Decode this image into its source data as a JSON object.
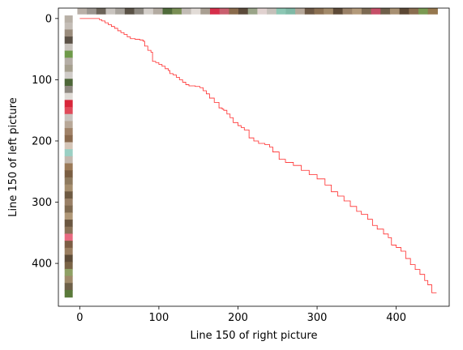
{
  "chart_data": {
    "type": "line",
    "title": "",
    "xlabel": "Line 150 of right picture",
    "ylabel": "Line 150 of left picture",
    "xlim": [
      -27,
      467
    ],
    "ylim": [
      470,
      -17
    ],
    "x_ticks": [
      0,
      100,
      200,
      300,
      400
    ],
    "y_ticks": [
      0,
      100,
      200,
      300,
      400
    ],
    "grid": false,
    "series": [
      {
        "color": "#ff2a2a",
        "points": [
          [
            0,
            0
          ],
          [
            22,
            0
          ],
          [
            25,
            2
          ],
          [
            28,
            4
          ],
          [
            32,
            7
          ],
          [
            36,
            10
          ],
          [
            40,
            13
          ],
          [
            44,
            16
          ],
          [
            48,
            20
          ],
          [
            52,
            23
          ],
          [
            56,
            26
          ],
          [
            60,
            30
          ],
          [
            64,
            33
          ],
          [
            70,
            34
          ],
          [
            76,
            35
          ],
          [
            80,
            37
          ],
          [
            82,
            45
          ],
          [
            86,
            52
          ],
          [
            90,
            55
          ],
          [
            92,
            70
          ],
          [
            96,
            72
          ],
          [
            100,
            75
          ],
          [
            104,
            78
          ],
          [
            108,
            82
          ],
          [
            112,
            85
          ],
          [
            114,
            90
          ],
          [
            118,
            92
          ],
          [
            122,
            96
          ],
          [
            126,
            100
          ],
          [
            130,
            104
          ],
          [
            134,
            108
          ],
          [
            138,
            110
          ],
          [
            146,
            111
          ],
          [
            152,
            113
          ],
          [
            156,
            118
          ],
          [
            160,
            123
          ],
          [
            164,
            130
          ],
          [
            170,
            137
          ],
          [
            176,
            146
          ],
          [
            180,
            148
          ],
          [
            182,
            150
          ],
          [
            186,
            156
          ],
          [
            190,
            162
          ],
          [
            194,
            170
          ],
          [
            200,
            175
          ],
          [
            204,
            178
          ],
          [
            208,
            182
          ],
          [
            214,
            195
          ],
          [
            220,
            200
          ],
          [
            226,
            204
          ],
          [
            234,
            206
          ],
          [
            240,
            210
          ],
          [
            244,
            218
          ],
          [
            252,
            230
          ],
          [
            260,
            235
          ],
          [
            270,
            240
          ],
          [
            280,
            248
          ],
          [
            290,
            255
          ],
          [
            300,
            262
          ],
          [
            310,
            272
          ],
          [
            318,
            283
          ],
          [
            326,
            290
          ],
          [
            334,
            298
          ],
          [
            342,
            307
          ],
          [
            350,
            315
          ],
          [
            356,
            320
          ],
          [
            364,
            328
          ],
          [
            370,
            338
          ],
          [
            376,
            344
          ],
          [
            384,
            352
          ],
          [
            390,
            358
          ],
          [
            394,
            370
          ],
          [
            400,
            374
          ],
          [
            406,
            380
          ],
          [
            412,
            392
          ],
          [
            418,
            402
          ],
          [
            424,
            410
          ],
          [
            430,
            418
          ],
          [
            436,
            428
          ],
          [
            440,
            435
          ],
          [
            444,
            435
          ],
          [
            445,
            448
          ],
          [
            451,
            448
          ]
        ]
      }
    ],
    "top_strip": {
      "colors": [
        "#b9b0a8",
        "#9c9690",
        "#6b6358",
        "#c9c4bf",
        "#a8a39c",
        "#5a5246",
        "#8f8a82",
        "#d5d0cb",
        "#b3aba1",
        "#4f6b3a",
        "#7a8f55",
        "#c2bcb5",
        "#e2dcd7",
        "#a99f92",
        "#d62e4a",
        "#c95f6e",
        "#8a6b4c",
        "#5b4a3a",
        "#9aa488",
        "#e1d2d0",
        "#c6c0ba",
        "#8cc7b4",
        "#7fb9a6",
        "#b6a89a",
        "#6d5844",
        "#8b7052",
        "#a38a6a",
        "#5e4a36",
        "#9b8268",
        "#b39a7a",
        "#7d6a52",
        "#c64f68",
        "#6f5f4a",
        "#a89072",
        "#5c4834",
        "#8a6e50",
        "#7a9a52",
        "#96784e"
      ]
    },
    "left_strip": {
      "colors": [
        "#b8b0a6",
        "#c4bdb6",
        "#9a8c7c",
        "#5b5146",
        "#c9c4be",
        "#6f9a4a",
        "#b5aea6",
        "#a6a08f",
        "#d0ccc8",
        "#4d6638",
        "#8e8880",
        "#e0dbd6",
        "#d8263a",
        "#e04a5a",
        "#c9c4bf",
        "#b8a898",
        "#a08268",
        "#8a6a4e",
        "#d6c6b8",
        "#9ad0c4",
        "#c3b8ae",
        "#9a7a58",
        "#7a5e42",
        "#8e7a5e",
        "#a58e6e",
        "#6e5a42",
        "#998066",
        "#7f6a50",
        "#b09878",
        "#6a5640",
        "#8a7258",
        "#e86a80",
        "#7c5e44",
        "#9a7e60",
        "#5e4c38",
        "#7a6446",
        "#8fa064",
        "#a08a6a",
        "#6e6048",
        "#5a7a3a"
      ]
    }
  }
}
